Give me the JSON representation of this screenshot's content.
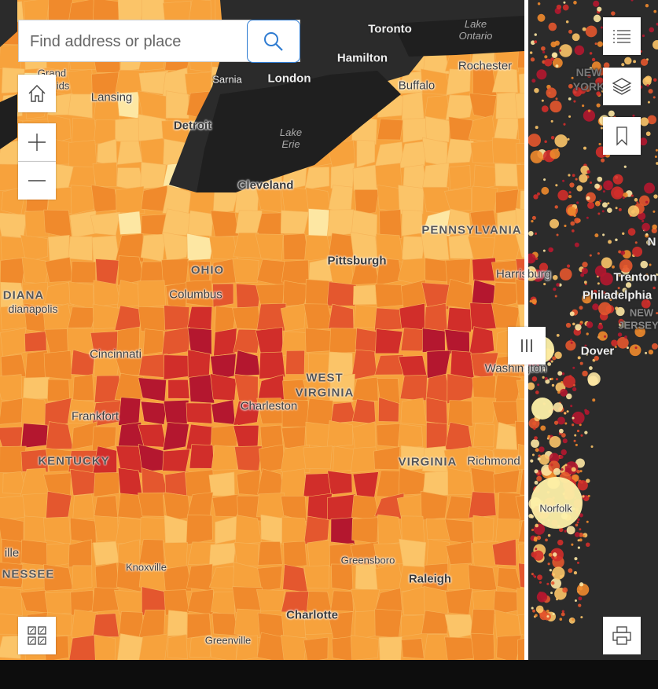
{
  "search": {
    "placeholder": "Find address or place"
  },
  "controls": {
    "home": "home-icon",
    "zoom_in": "plus-icon",
    "zoom_out": "minus-icon",
    "basemap": "grid-icon",
    "legend": "list-icon",
    "layers": "layers-icon",
    "bookmarks": "bookmark-icon",
    "print": "printer-icon",
    "swipe": "swipe-handle-icon"
  },
  "colors": {
    "lightest": "#fde7a3",
    "light": "#fbc468",
    "medium": "#f7a23c",
    "orange": "#f08a2c",
    "dark_orange": "#e4572e",
    "red": "#d12e2a",
    "dark_red": "#b4172f",
    "basemap_dark": "#2b2b2b",
    "water_dark": "#1e1e1e"
  },
  "labels": {
    "toronto": "Toronto",
    "lake_ontario": "Lake\nOntario",
    "hamilton": "Hamilton",
    "rochester": "Rochester",
    "grand_rapids_1": "Grand",
    "grand_rapids_2": "ids",
    "sarnia": "Sarnia",
    "london": "London",
    "buffalo": "Buffalo",
    "lansing": "Lansing",
    "detroit": "Detroit",
    "lake_erie": "Lake\nErie",
    "cleveland": "Cleveland",
    "pennsylvania": "PENNSYLVANIA",
    "pittsburgh": "Pittsburgh",
    "ohio": "OHIO",
    "harrisburg": "Harrisburg",
    "indiana": "DIANA",
    "indianapolis": "dianapolis",
    "columbus": "Columbus",
    "cincinnati": "Cincinnati",
    "west_virginia_1": "WEST",
    "west_virginia_2": "VIRGINIA",
    "washington": "Washington",
    "charleston": "Charleston",
    "frankfort": "Frankfort",
    "kentucky": "KENTUCKY",
    "virginia": "VIRGINIA",
    "richmond": "Richmond",
    "knoxville": "Knoxville",
    "greensboro": "Greensboro",
    "raleigh": "Raleigh",
    "ille": "ille",
    "tennessee": "NESSEE",
    "charlotte": "Charlotte",
    "greenville": "Greenville",
    "new_york_1": "NEW",
    "new_york_2": "YORK",
    "trenton": "Trenton",
    "philadelphia": "Philadelphia",
    "new_jersey_1": "NEW",
    "new_jersey_2": "JERSEY",
    "dover": "Dover",
    "norfolk": "Norfolk",
    "n_cut": "N"
  }
}
